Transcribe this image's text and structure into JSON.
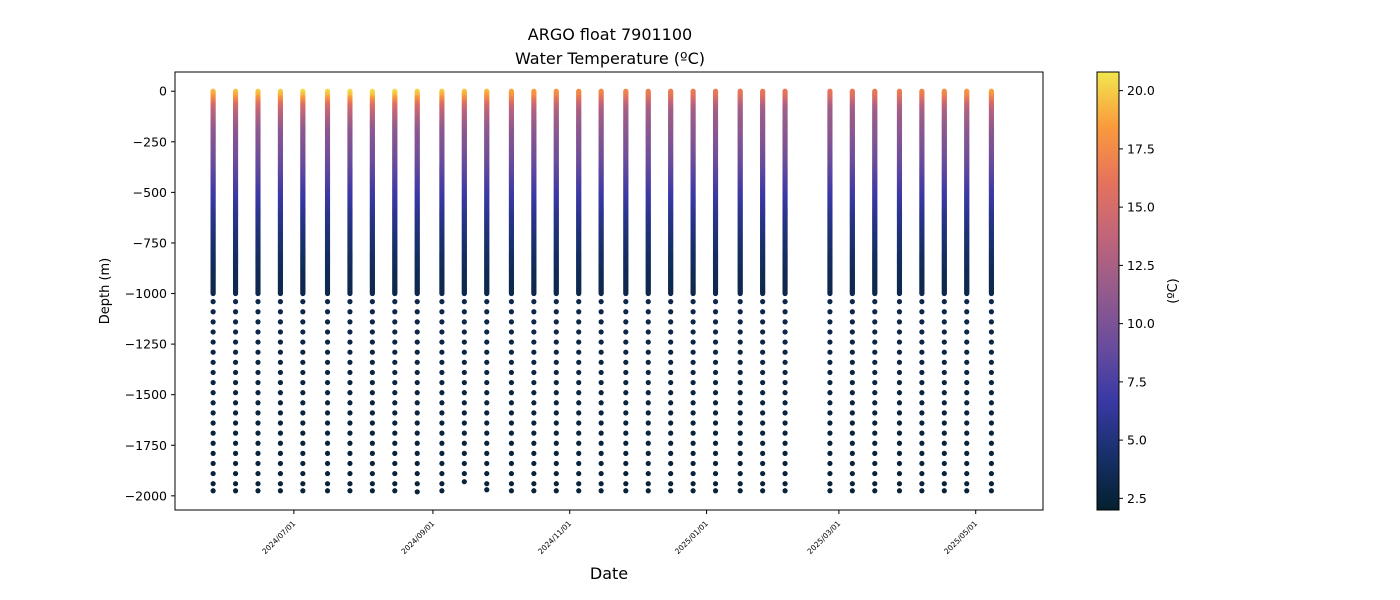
{
  "chart_data": {
    "type": "scatter",
    "title": "ARGO float 7901100",
    "subtitle": "Water Temperature (ºC)",
    "xlabel": "Date",
    "ylabel": "Depth (m)",
    "colorbar_label": "(ºC)",
    "colormap": "thermal",
    "colormap_colors": [
      "#04202e",
      "#17306a",
      "#3a39a5",
      "#6a4c9c",
      "#945b8c",
      "#c1657a",
      "#e5735c",
      "#fa9a3c",
      "#f2e74e"
    ],
    "clim": [
      2.0,
      20.8
    ],
    "xlim": [
      "2024-05-09",
      "2025-05-31"
    ],
    "ylim": [
      -2070,
      95
    ],
    "x_ticks": [
      "2024/07/01",
      "2024/09/01",
      "2024/11/01",
      "2025/01/01",
      "2025/03/01",
      "2025/05/01"
    ],
    "y_ticks": [
      0,
      -250,
      -500,
      -750,
      -1000,
      -1250,
      -1500,
      -1750,
      -2000
    ],
    "colorbar_ticks": [
      2.5,
      5.0,
      7.5,
      10.0,
      12.5,
      15.0,
      17.5,
      20.0
    ],
    "profile_dates": [
      "2024-05-26",
      "2024-06-05",
      "2024-06-15",
      "2024-06-25",
      "2024-07-05",
      "2024-07-16",
      "2024-07-26",
      "2024-08-05",
      "2024-08-15",
      "2024-08-25",
      "2024-09-05",
      "2024-09-15",
      "2024-09-25",
      "2024-10-06",
      "2024-10-16",
      "2024-10-26",
      "2024-11-05",
      "2024-11-15",
      "2024-11-26",
      "2024-12-06",
      "2024-12-16",
      "2024-12-26",
      "2025-01-05",
      "2025-01-16",
      "2025-01-26",
      "2025-02-05",
      "2025-02-25",
      "2025-03-07",
      "2025-03-17",
      "2025-03-28",
      "2025-04-07",
      "2025-04-17",
      "2025-04-27",
      "2025-05-08"
    ],
    "profile_max_depth": [
      -1975,
      -1975,
      -1975,
      -1975,
      -1975,
      -1975,
      -1975,
      -1975,
      -1975,
      -1980,
      -1975,
      -1930,
      -1970,
      -1975,
      -1975,
      -1975,
      -1975,
      -1975,
      -1975,
      -1975,
      -1975,
      -1975,
      -1975,
      -1975,
      -1975,
      -1975,
      -1975,
      -1975,
      -1975,
      -1975,
      -1975,
      -1975,
      -1975,
      -1975
    ],
    "surface_temperature": [
      19.5,
      19.8,
      20.0,
      20.2,
      20.5,
      20.5,
      20.6,
      20.7,
      20.5,
      20.3,
      20.0,
      19.8,
      19.5,
      19.0,
      18.6,
      18.2,
      17.8,
      17.5,
      17.3,
      17.0,
      16.9,
      16.8,
      16.7,
      16.6,
      16.5,
      16.4,
      16.3,
      16.4,
      16.6,
      16.9,
      17.3,
      17.8,
      18.3,
      18.8
    ],
    "temperature_profile": {
      "depth": [
        0,
        -25,
        -50,
        -75,
        -100,
        -150,
        -200,
        -300,
        -400,
        -500,
        -600,
        -700,
        -800,
        -900,
        -1000,
        -1250,
        -1500,
        -1750,
        -2000
      ],
      "temperature": [
        18.0,
        17.2,
        15.5,
        13.8,
        12.8,
        11.8,
        11.0,
        9.8,
        8.5,
        7.0,
        5.9,
        5.0,
        4.2,
        3.6,
        3.2,
        2.9,
        2.7,
        2.55,
        2.45
      ]
    },
    "dense_sampling_to": -1000,
    "dense_step": 5,
    "sparse_step": 50
  }
}
